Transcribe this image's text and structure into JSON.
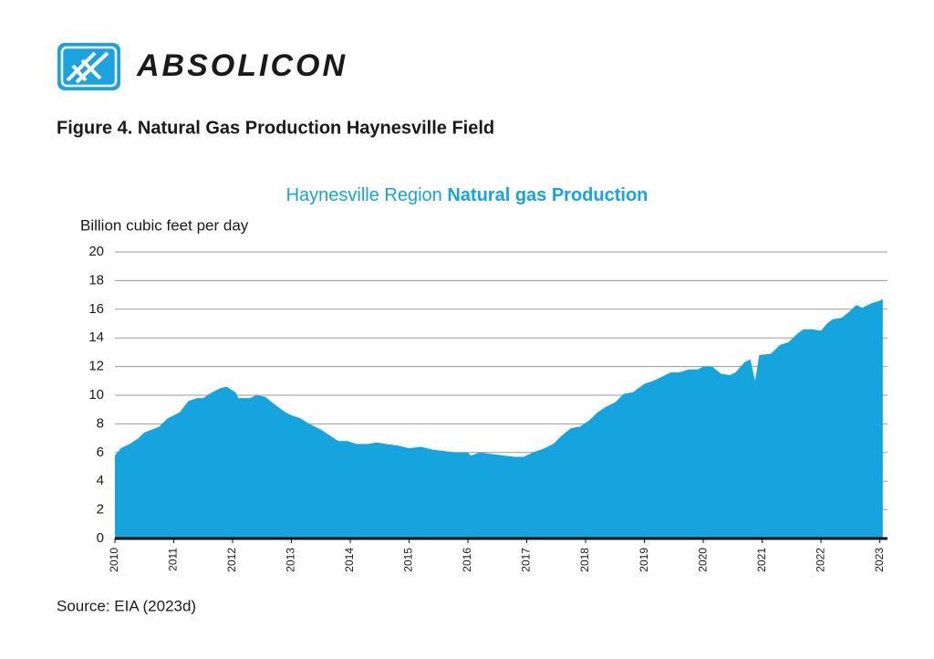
{
  "header": {
    "logo_text": "ABSOLICON",
    "figure_caption": "Figure 4. Natural Gas Production Haynesville Field"
  },
  "chart_data": {
    "type": "area",
    "title": {
      "regular": "Haynesville Region",
      "bold": "Natural gas Production"
    },
    "y_label": "Billion cubic feet per day",
    "color": "#16a4df",
    "x": [
      2010.0,
      2010.1,
      2010.25,
      2010.4,
      2010.5,
      2010.75,
      2010.9,
      2011.1,
      2011.25,
      2011.4,
      2011.5,
      2011.65,
      2011.8,
      2011.9,
      2012.05,
      2012.1,
      2012.3,
      2012.4,
      2012.55,
      2012.7,
      2012.9,
      2013.0,
      2013.15,
      2013.3,
      2013.5,
      2013.65,
      2013.8,
      2013.95,
      2014.1,
      2014.3,
      2014.45,
      2014.6,
      2014.8,
      2015.0,
      2015.2,
      2015.4,
      2015.6,
      2015.8,
      2016.0,
      2016.05,
      2016.2,
      2016.4,
      2016.6,
      2016.8,
      2016.95,
      2017.1,
      2017.3,
      2017.45,
      2017.6,
      2017.75,
      2017.9,
      2018.05,
      2018.2,
      2018.35,
      2018.5,
      2018.65,
      2018.8,
      2019.0,
      2019.15,
      2019.3,
      2019.45,
      2019.6,
      2019.75,
      2019.9,
      2020.0,
      2020.15,
      2020.3,
      2020.45,
      2020.55,
      2020.7,
      2020.8,
      2020.88,
      2020.95,
      2021.15,
      2021.3,
      2021.45,
      2021.6,
      2021.7,
      2021.85,
      2022.0,
      2022.1,
      2022.2,
      2022.35,
      2022.5,
      2022.6,
      2022.7,
      2022.85,
      2023.0,
      2023.05
    ],
    "values": [
      5.8,
      6.3,
      6.6,
      7.0,
      7.4,
      7.8,
      8.4,
      8.8,
      9.6,
      9.8,
      9.8,
      10.2,
      10.5,
      10.6,
      10.2,
      9.8,
      9.8,
      10.0,
      9.9,
      9.4,
      8.8,
      8.6,
      8.4,
      8.0,
      7.6,
      7.2,
      6.8,
      6.8,
      6.6,
      6.6,
      6.7,
      6.6,
      6.5,
      6.3,
      6.4,
      6.2,
      6.1,
      6.0,
      6.0,
      5.8,
      6.0,
      5.9,
      5.8,
      5.7,
      5.7,
      6.0,
      6.3,
      6.6,
      7.2,
      7.7,
      7.8,
      8.2,
      8.8,
      9.2,
      9.5,
      10.1,
      10.2,
      10.8,
      11.0,
      11.3,
      11.6,
      11.6,
      11.8,
      11.8,
      12.0,
      12.0,
      11.5,
      11.4,
      11.6,
      12.3,
      12.5,
      11.0,
      12.8,
      12.9,
      13.5,
      13.7,
      14.3,
      14.6,
      14.6,
      14.5,
      15.0,
      15.3,
      15.4,
      15.9,
      16.3,
      16.1,
      16.4,
      16.6,
      16.7
    ],
    "xlim": [
      2010,
      2023.13
    ],
    "xticks": [
      2010,
      2011,
      2012,
      2013,
      2014,
      2015,
      2016,
      2017,
      2018,
      2019,
      2020,
      2021,
      2022,
      2023
    ],
    "ylim": [
      0,
      20
    ],
    "yticks": [
      0,
      2,
      4,
      6,
      8,
      10,
      12,
      14,
      16,
      18,
      20
    ],
    "grid": true,
    "source": "Source: EIA (2023d)"
  }
}
